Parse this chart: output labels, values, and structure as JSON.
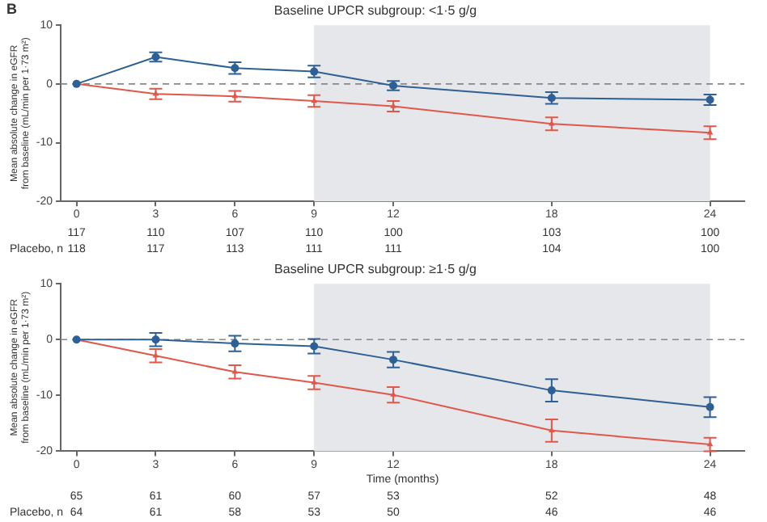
{
  "chart_data": [
    {
      "type": "line",
      "title": "Baseline UPCR subgroup: <1·5 g/g",
      "ylabel": "Mean absolute change in eGFR from baseline (mL/min per 1·73 m²)",
      "x": [
        0,
        3,
        6,
        9,
        12,
        18,
        24
      ],
      "xlim": [
        -0.6,
        25.3
      ],
      "xticks": [
        0,
        3,
        6,
        9,
        12,
        18,
        24
      ],
      "ylim": [
        -20,
        10
      ],
      "yticks": [
        -20,
        -10,
        0,
        10
      ],
      "grid": false,
      "legend": false,
      "line_style": "solid",
      "series": [
        {
          "color": "#2e5f95",
          "marker": "circle",
          "values": [
            0,
            4.6,
            2.7,
            2.1,
            -0.3,
            -2.4,
            -2.7
          ],
          "errors": [
            null,
            0.8,
            1,
            1,
            0.8,
            1,
            0.9
          ]
        },
        {
          "color": "#e0574c",
          "marker": "triangle",
          "values": [
            0,
            -1.7,
            -2.1,
            -2.9,
            -3.8,
            -6.8,
            -8.3
          ],
          "errors": [
            null,
            0.9,
            0.9,
            1,
            0.9,
            1.1,
            1.1
          ]
        }
      ],
      "ref_lines": [
        {
          "axis": "y",
          "value": 0,
          "color": "#888888",
          "line_style": "dashed"
        }
      ],
      "bands": [
        {
          "axis": "x",
          "from": 9,
          "to": 24,
          "color": "#e6e7ea"
        }
      ],
      "annotations": [
        "B",
        "117",
        "110",
        "107",
        "110",
        "100",
        "103",
        "100",
        "Placebo, n",
        "118",
        "117",
        "113",
        "111",
        "111",
        "104",
        "100"
      ]
    },
    {
      "type": "line",
      "title": "Baseline UPCR subgroup: ≥1·5 g/g",
      "xlabel": "Time (months)",
      "ylabel": "Mean absolute change in eGFR from baseline (mL/min per 1·73 m²)",
      "x": [
        0,
        3,
        6,
        9,
        12,
        18,
        24
      ],
      "xlim": [
        -0.6,
        25.3
      ],
      "xticks": [
        0,
        3,
        6,
        9,
        12,
        18,
        24
      ],
      "ylim": [
        -20,
        10
      ],
      "yticks": [
        -20,
        -10,
        0,
        10
      ],
      "grid": false,
      "legend": false,
      "line_style": "solid",
      "series": [
        {
          "color": "#2e5f95",
          "marker": "circle",
          "values": [
            0,
            0,
            -0.7,
            -1.2,
            -3.6,
            -9.1,
            -12.1
          ],
          "errors": [
            null,
            1.2,
            1.4,
            1.3,
            1.4,
            2,
            1.8
          ]
        },
        {
          "color": "#e0574c",
          "marker": "triangle",
          "values": [
            0,
            -2.9,
            -5.8,
            -7.7,
            -9.9,
            -16.3,
            -18.8
          ],
          "errors": [
            null,
            1.2,
            1.2,
            1.2,
            1.4,
            2,
            1.2
          ]
        }
      ],
      "ref_lines": [
        {
          "axis": "y",
          "value": 0,
          "color": "#888888",
          "line_style": "dashed"
        }
      ],
      "bands": [
        {
          "axis": "x",
          "from": 9,
          "to": 24,
          "color": "#e6e7ea"
        }
      ],
      "annotations": [
        "65",
        "61",
        "60",
        "57",
        "53",
        "52",
        "48",
        "Placebo, n",
        "64",
        "61",
        "58",
        "53",
        "50",
        "46",
        "46"
      ]
    }
  ]
}
